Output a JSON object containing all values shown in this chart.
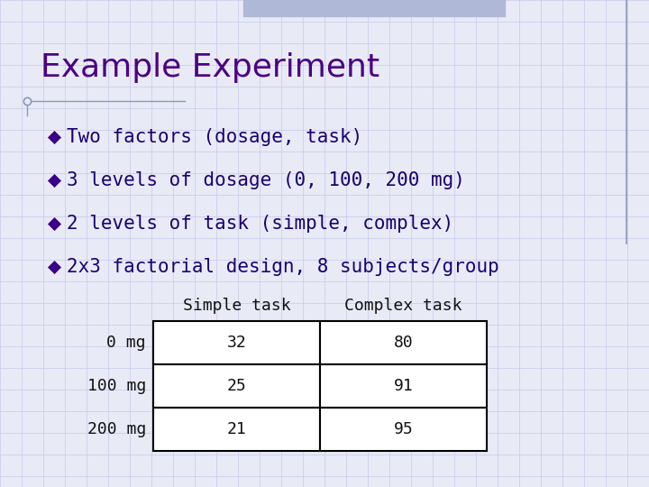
{
  "title": "Example Experiment",
  "title_color": "#4B0082",
  "title_fontsize": 26,
  "background_color": "#E8EAF6",
  "grid_color": "#C5CAE9",
  "bullet_color": "#3A008A",
  "bullet_points": [
    "Two factors (dosage, task)",
    "3 levels of dosage (0, 100, 200 mg)",
    "2 levels of task (simple, complex)",
    "2x3 factorial design, 8 subjects/group"
  ],
  "bullet_fontsize": 15,
  "bullet_text_color": "#1A0070",
  "table_row_labels": [
    "0 mg",
    "100 mg",
    "200 mg"
  ],
  "table_col_labels": [
    "Simple task",
    "Complex task"
  ],
  "table_data": [
    [
      32,
      80
    ],
    [
      25,
      91
    ],
    [
      21,
      95
    ]
  ],
  "table_fontsize": 13,
  "table_label_color": "#111111",
  "header_color": "#111111",
  "top_bar_color": "#B0B8D8",
  "right_line_color": "#8899BB",
  "underline_color": "#8899BB"
}
